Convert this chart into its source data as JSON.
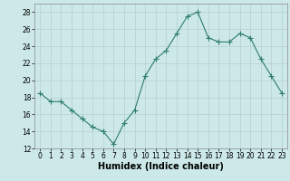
{
  "x": [
    0,
    1,
    2,
    3,
    4,
    5,
    6,
    7,
    8,
    9,
    10,
    11,
    12,
    13,
    14,
    15,
    16,
    17,
    18,
    19,
    20,
    21,
    22,
    23
  ],
  "y": [
    18.5,
    17.5,
    17.5,
    16.5,
    15.5,
    14.5,
    14.0,
    12.5,
    15.0,
    16.5,
    20.5,
    22.5,
    23.5,
    25.5,
    27.5,
    28.0,
    25.0,
    24.5,
    24.5,
    25.5,
    25.0,
    22.5,
    20.5,
    18.5
  ],
  "line_color": "#2e7d6e",
  "marker": "+",
  "marker_size": 4,
  "bg_color": "#cce8e8",
  "grid_color": "#b8cece",
  "xlabel": "Humidex (Indice chaleur)",
  "ylim": [
    12,
    29
  ],
  "xlim": [
    -0.5,
    23.5
  ],
  "yticks": [
    12,
    14,
    16,
    18,
    20,
    22,
    24,
    26,
    28
  ],
  "xticks": [
    0,
    1,
    2,
    3,
    4,
    5,
    6,
    7,
    8,
    9,
    10,
    11,
    12,
    13,
    14,
    15,
    16,
    17,
    18,
    19,
    20,
    21,
    22,
    23
  ],
  "tick_fontsize": 5.5,
  "xlabel_fontsize": 7,
  "linewidth": 0.8
}
